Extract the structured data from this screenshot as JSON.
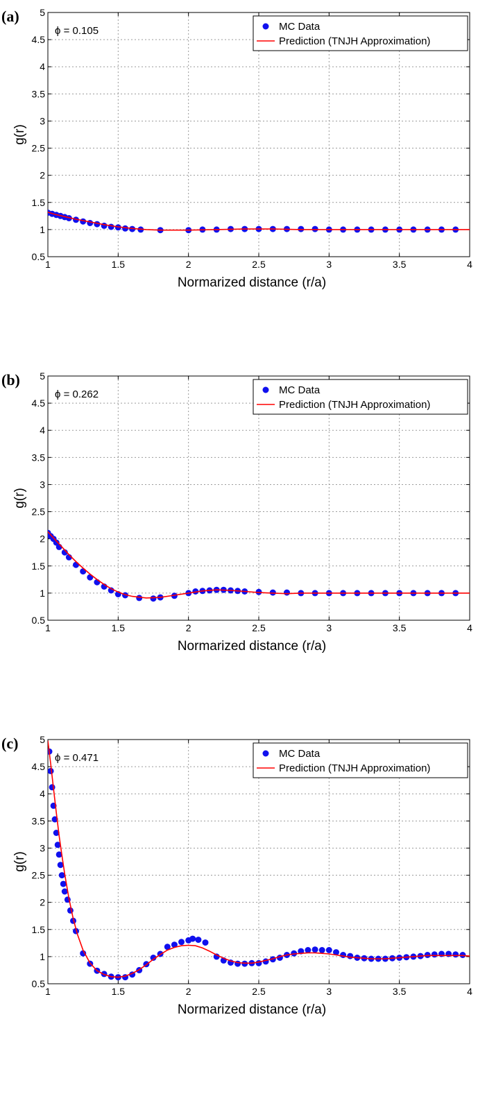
{
  "chart_data": [
    {
      "type": "scatter",
      "panel_label": "(a)",
      "annotation": "ϕ = 0.105",
      "xlabel": "Normarized distance (r/a)",
      "ylabel": "g(r)",
      "xlim": [
        1,
        4
      ],
      "ylim": [
        0.5,
        5
      ],
      "xticks": [
        1,
        1.5,
        2,
        2.5,
        3,
        3.5,
        4
      ],
      "xtick_labels": [
        "1",
        "1.5",
        "2",
        "2.5",
        "3",
        "3.5",
        "4"
      ],
      "yticks": [
        0.5,
        1,
        1.5,
        2,
        2.5,
        3,
        3.5,
        4,
        4.5,
        5
      ],
      "ytick_labels": [
        "0.5",
        "1",
        "1.5",
        "2",
        "2.5",
        "3",
        "3.5",
        "4",
        "4.5",
        "5"
      ],
      "grid": true,
      "legend_position": "top-right",
      "legend": [
        "MC Data",
        "Prediction (TNJH Approximation)"
      ],
      "series": [
        {
          "name": "MC Data",
          "kind": "markers",
          "color": "#1010ee",
          "x": [
            1.0,
            1.03,
            1.06,
            1.09,
            1.12,
            1.15,
            1.2,
            1.25,
            1.3,
            1.35,
            1.4,
            1.45,
            1.5,
            1.55,
            1.6,
            1.66,
            1.8,
            2.0,
            2.1,
            2.2,
            2.3,
            2.4,
            2.5,
            2.6,
            2.7,
            2.8,
            2.9,
            3.0,
            3.1,
            3.2,
            3.3,
            3.4,
            3.5,
            3.6,
            3.7,
            3.8,
            3.9
          ],
          "y": [
            1.31,
            1.29,
            1.27,
            1.25,
            1.23,
            1.21,
            1.18,
            1.15,
            1.12,
            1.1,
            1.07,
            1.05,
            1.04,
            1.02,
            1.01,
            1.0,
            0.99,
            0.99,
            1.0,
            1.0,
            1.01,
            1.01,
            1.01,
            1.01,
            1.01,
            1.01,
            1.01,
            1.0,
            1.0,
            1.0,
            1.0,
            1.0,
            1.0,
            1.0,
            1.0,
            1.0,
            1.0
          ]
        },
        {
          "name": "Prediction (TNJH Approximation)",
          "kind": "line",
          "color": "#ff0000",
          "x": [
            1.0,
            1.05,
            1.1,
            1.15,
            1.2,
            1.3,
            1.4,
            1.5,
            1.6,
            1.7,
            1.8,
            2.0,
            2.2,
            2.4,
            2.6,
            2.8,
            3.0,
            3.2,
            3.4,
            3.6,
            3.8,
            4.0
          ],
          "y": [
            1.32,
            1.28,
            1.25,
            1.22,
            1.19,
            1.14,
            1.09,
            1.05,
            1.02,
            1.0,
            0.99,
            0.99,
            1.0,
            1.01,
            1.01,
            1.0,
            1.0,
            1.0,
            1.0,
            1.0,
            1.0,
            1.0
          ]
        }
      ]
    },
    {
      "type": "scatter",
      "panel_label": "(b)",
      "annotation": "ϕ = 0.262",
      "xlabel": "Normarized distance (r/a)",
      "ylabel": "g(r)",
      "xlim": [
        1,
        4
      ],
      "ylim": [
        0.5,
        5
      ],
      "xticks": [
        1,
        1.5,
        2,
        2.5,
        3,
        3.5,
        4
      ],
      "xtick_labels": [
        "1",
        "1.5",
        "2",
        "2.5",
        "3",
        "3.5",
        "4"
      ],
      "yticks": [
        0.5,
        1,
        1.5,
        2,
        2.5,
        3,
        3.5,
        4,
        4.5,
        5
      ],
      "ytick_labels": [
        "0.5",
        "1",
        "1.5",
        "2",
        "2.5",
        "3",
        "3.5",
        "4",
        "4.5",
        "5"
      ],
      "grid": true,
      "legend_position": "top-right",
      "legend": [
        "MC Data",
        "Prediction (TNJH Approximation)"
      ],
      "series": [
        {
          "name": "MC Data",
          "kind": "markers",
          "color": "#1010ee",
          "x": [
            1.0,
            1.02,
            1.04,
            1.06,
            1.08,
            1.12,
            1.15,
            1.2,
            1.25,
            1.3,
            1.35,
            1.4,
            1.45,
            1.5,
            1.55,
            1.65,
            1.75,
            1.8,
            1.9,
            2.0,
            2.05,
            2.1,
            2.15,
            2.2,
            2.25,
            2.3,
            2.35,
            2.4,
            2.5,
            2.6,
            2.7,
            2.8,
            2.9,
            3.0,
            3.1,
            3.2,
            3.3,
            3.4,
            3.5,
            3.6,
            3.7,
            3.8,
            3.9
          ],
          "y": [
            2.11,
            2.05,
            2.0,
            1.93,
            1.85,
            1.75,
            1.66,
            1.52,
            1.4,
            1.29,
            1.2,
            1.12,
            1.05,
            0.98,
            0.96,
            0.91,
            0.9,
            0.92,
            0.95,
            1.0,
            1.03,
            1.04,
            1.05,
            1.06,
            1.06,
            1.05,
            1.04,
            1.03,
            1.02,
            1.01,
            1.01,
            1.0,
            1.0,
            1.0,
            1.0,
            1.0,
            1.0,
            1.0,
            1.0,
            1.0,
            1.0,
            1.0,
            1.0
          ]
        },
        {
          "name": "Prediction (TNJH Approximation)",
          "kind": "line",
          "color": "#ff0000",
          "x": [
            1.0,
            1.05,
            1.1,
            1.15,
            1.2,
            1.25,
            1.3,
            1.35,
            1.4,
            1.45,
            1.5,
            1.55,
            1.6,
            1.7,
            1.8,
            1.9,
            2.0,
            2.1,
            2.2,
            2.3,
            2.4,
            2.5,
            2.6,
            2.7,
            2.8,
            3.0,
            3.2,
            3.4,
            3.6,
            3.8,
            4.0
          ],
          "y": [
            2.13,
            1.99,
            1.85,
            1.71,
            1.58,
            1.46,
            1.35,
            1.25,
            1.16,
            1.08,
            1.02,
            0.97,
            0.94,
            0.91,
            0.92,
            0.96,
            1.0,
            1.04,
            1.06,
            1.05,
            1.03,
            1.01,
            1.0,
            0.99,
            1.0,
            1.0,
            1.0,
            1.0,
            1.0,
            1.0,
            1.0
          ]
        }
      ]
    },
    {
      "type": "scatter",
      "panel_label": "(c)",
      "annotation": "ϕ = 0.471",
      "xlabel": "Normarized distance (r/a)",
      "ylabel": "g(r)",
      "xlim": [
        1,
        4
      ],
      "ylim": [
        0.5,
        5
      ],
      "xticks": [
        1,
        1.5,
        2,
        2.5,
        3,
        3.5,
        4
      ],
      "xtick_labels": [
        "1",
        "1.5",
        "2",
        "2.5",
        "3",
        "3.5",
        "4"
      ],
      "yticks": [
        0.5,
        1,
        1.5,
        2,
        2.5,
        3,
        3.5,
        4,
        4.5,
        5
      ],
      "ytick_labels": [
        "0.5",
        "1",
        "1.5",
        "2",
        "2.5",
        "3",
        "3.5",
        "4",
        "4.5",
        "5"
      ],
      "grid": true,
      "legend_position": "top-right",
      "legend": [
        "MC Data",
        "Prediction (TNJH Approximation)"
      ],
      "series": [
        {
          "name": "MC Data",
          "kind": "markers",
          "color": "#1010ee",
          "x": [
            1.01,
            1.02,
            1.03,
            1.04,
            1.05,
            1.06,
            1.07,
            1.08,
            1.09,
            1.1,
            1.11,
            1.12,
            1.14,
            1.16,
            1.18,
            1.2,
            1.25,
            1.3,
            1.35,
            1.4,
            1.45,
            1.5,
            1.55,
            1.6,
            1.65,
            1.7,
            1.75,
            1.8,
            1.85,
            1.9,
            1.95,
            2.0,
            2.03,
            2.07,
            2.12,
            2.2,
            2.25,
            2.3,
            2.35,
            2.4,
            2.45,
            2.5,
            2.55,
            2.6,
            2.65,
            2.7,
            2.75,
            2.8,
            2.85,
            2.9,
            2.95,
            3.0,
            3.05,
            3.1,
            3.15,
            3.2,
            3.25,
            3.3,
            3.35,
            3.4,
            3.45,
            3.5,
            3.55,
            3.6,
            3.65,
            3.7,
            3.75,
            3.8,
            3.85,
            3.9,
            3.95
          ],
          "y": [
            4.78,
            4.42,
            4.12,
            3.78,
            3.53,
            3.28,
            3.06,
            2.88,
            2.69,
            2.5,
            2.34,
            2.2,
            2.05,
            1.85,
            1.66,
            1.47,
            1.06,
            0.87,
            0.74,
            0.68,
            0.63,
            0.62,
            0.62,
            0.67,
            0.75,
            0.86,
            0.98,
            1.05,
            1.18,
            1.22,
            1.27,
            1.3,
            1.33,
            1.31,
            1.26,
            1.0,
            0.93,
            0.89,
            0.87,
            0.87,
            0.88,
            0.88,
            0.91,
            0.95,
            0.98,
            1.03,
            1.06,
            1.1,
            1.12,
            1.13,
            1.12,
            1.12,
            1.08,
            1.03,
            1.01,
            0.98,
            0.97,
            0.96,
            0.96,
            0.96,
            0.97,
            0.98,
            0.99,
            1.0,
            1.01,
            1.03,
            1.04,
            1.05,
            1.05,
            1.04,
            1.03
          ]
        },
        {
          "name": "Prediction (TNJH Approximation)",
          "kind": "line",
          "color": "#ff0000",
          "x": [
            1.0,
            1.02,
            1.04,
            1.06,
            1.08,
            1.1,
            1.12,
            1.15,
            1.18,
            1.21,
            1.25,
            1.3,
            1.35,
            1.4,
            1.45,
            1.5,
            1.55,
            1.6,
            1.65,
            1.7,
            1.75,
            1.8,
            1.85,
            1.9,
            1.95,
            2.0,
            2.05,
            2.1,
            2.15,
            2.2,
            2.25,
            2.3,
            2.35,
            2.4,
            2.45,
            2.5,
            2.55,
            2.6,
            2.65,
            2.7,
            2.75,
            2.8,
            2.85,
            2.9,
            2.95,
            3.0,
            3.05,
            3.1,
            3.15,
            3.2,
            3.25,
            3.3,
            3.35,
            3.4,
            3.45,
            3.5,
            3.55,
            3.6,
            3.65,
            3.7,
            3.75,
            3.8,
            3.85,
            3.9,
            3.95,
            4.0
          ],
          "y": [
            4.98,
            4.55,
            4.1,
            3.65,
            3.23,
            2.86,
            2.52,
            2.07,
            1.7,
            1.41,
            1.12,
            0.88,
            0.74,
            0.67,
            0.63,
            0.62,
            0.64,
            0.69,
            0.76,
            0.85,
            0.95,
            1.04,
            1.12,
            1.17,
            1.2,
            1.21,
            1.2,
            1.16,
            1.1,
            1.03,
            0.97,
            0.92,
            0.89,
            0.88,
            0.88,
            0.9,
            0.93,
            0.96,
            1.0,
            1.03,
            1.05,
            1.06,
            1.07,
            1.07,
            1.06,
            1.05,
            1.03,
            1.01,
            0.99,
            0.98,
            0.97,
            0.96,
            0.96,
            0.96,
            0.97,
            0.98,
            0.99,
            1.0,
            1.01,
            1.02,
            1.02,
            1.02,
            1.02,
            1.02,
            1.02,
            1.01
          ]
        }
      ]
    }
  ]
}
